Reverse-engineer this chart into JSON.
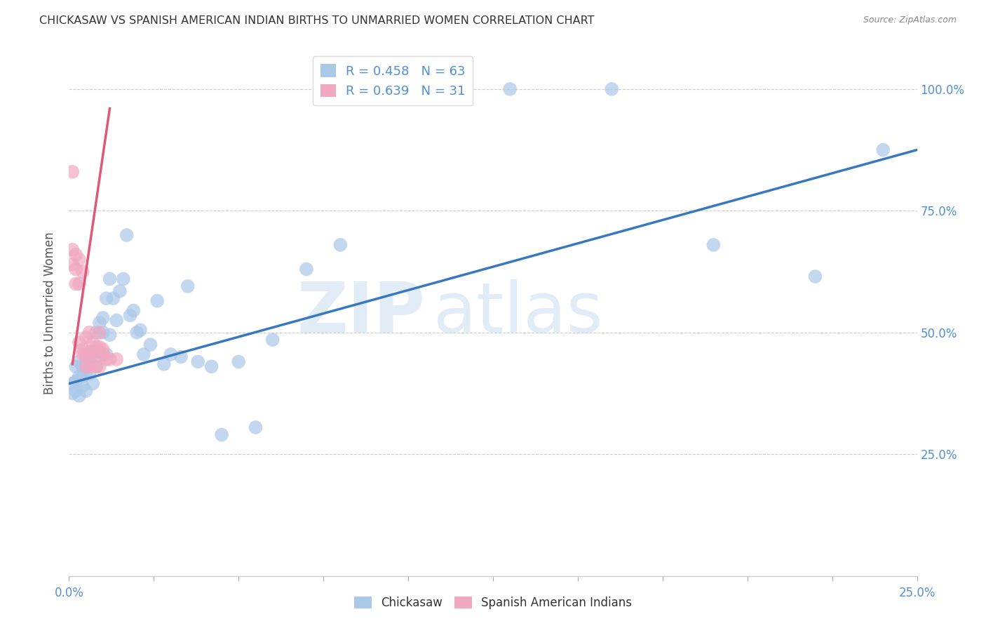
{
  "title": "CHICKASAW VS SPANISH AMERICAN INDIAN BIRTHS TO UNMARRIED WOMEN CORRELATION CHART",
  "source": "Source: ZipAtlas.com",
  "ylabel": "Births to Unmarried Women",
  "xlim": [
    0.0,
    0.25
  ],
  "ylim": [
    0.0,
    1.08
  ],
  "xtick_values": [
    0.0,
    0.025,
    0.05,
    0.075,
    0.1,
    0.125,
    0.15,
    0.175,
    0.2,
    0.225,
    0.25
  ],
  "xtick_labels_show": {
    "0.0": "0.0%",
    "0.25": "25.0%"
  },
  "ytick_values": [
    0.25,
    0.5,
    0.75,
    1.0
  ],
  "ytick_labels": [
    "25.0%",
    "50.0%",
    "75.0%",
    "100.0%"
  ],
  "legend_entry1_r": "R = 0.458",
  "legend_entry1_n": "N = 63",
  "legend_entry2_r": "R = 0.639",
  "legend_entry2_n": "N = 31",
  "watermark_zip": "ZIP",
  "watermark_atlas": "atlas",
  "blue_scatter_x": [
    0.001,
    0.001,
    0.002,
    0.002,
    0.002,
    0.003,
    0.003,
    0.003,
    0.004,
    0.004,
    0.004,
    0.005,
    0.005,
    0.005,
    0.006,
    0.006,
    0.006,
    0.007,
    0.007,
    0.008,
    0.008,
    0.008,
    0.009,
    0.009,
    0.01,
    0.01,
    0.01,
    0.011,
    0.011,
    0.012,
    0.012,
    0.013,
    0.014,
    0.015,
    0.016,
    0.017,
    0.018,
    0.019,
    0.02,
    0.021,
    0.022,
    0.024,
    0.026,
    0.028,
    0.03,
    0.033,
    0.035,
    0.038,
    0.042,
    0.045,
    0.05,
    0.055,
    0.06,
    0.07,
    0.08,
    0.09,
    0.1,
    0.11,
    0.13,
    0.16,
    0.19,
    0.22,
    0.24
  ],
  "blue_scatter_y": [
    0.375,
    0.395,
    0.38,
    0.4,
    0.43,
    0.37,
    0.41,
    0.44,
    0.41,
    0.39,
    0.43,
    0.38,
    0.42,
    0.445,
    0.415,
    0.43,
    0.44,
    0.395,
    0.455,
    0.46,
    0.5,
    0.43,
    0.46,
    0.52,
    0.455,
    0.5,
    0.53,
    0.455,
    0.57,
    0.495,
    0.61,
    0.57,
    0.525,
    0.585,
    0.61,
    0.7,
    0.535,
    0.545,
    0.5,
    0.505,
    0.455,
    0.475,
    0.565,
    0.435,
    0.455,
    0.45,
    0.595,
    0.44,
    0.43,
    0.29,
    0.44,
    0.305,
    0.485,
    0.63,
    0.68,
    1.0,
    1.0,
    1.0,
    1.0,
    1.0,
    0.68,
    0.615,
    0.875
  ],
  "pink_scatter_x": [
    0.001,
    0.001,
    0.001,
    0.002,
    0.002,
    0.002,
    0.003,
    0.003,
    0.003,
    0.004,
    0.004,
    0.004,
    0.005,
    0.005,
    0.005,
    0.006,
    0.006,
    0.006,
    0.007,
    0.007,
    0.007,
    0.008,
    0.008,
    0.009,
    0.009,
    0.009,
    0.01,
    0.01,
    0.011,
    0.012,
    0.014
  ],
  "pink_scatter_y": [
    0.64,
    0.67,
    0.83,
    0.6,
    0.63,
    0.66,
    0.48,
    0.6,
    0.65,
    0.455,
    0.465,
    0.625,
    0.43,
    0.455,
    0.49,
    0.43,
    0.46,
    0.5,
    0.445,
    0.46,
    0.48,
    0.43,
    0.47,
    0.43,
    0.47,
    0.5,
    0.455,
    0.465,
    0.445,
    0.445,
    0.445
  ],
  "blue_line_x": [
    0.0,
    0.25
  ],
  "blue_line_y": [
    0.395,
    0.875
  ],
  "pink_line_x": [
    0.001,
    0.012
  ],
  "pink_line_y": [
    0.435,
    0.96
  ],
  "scatter_color_blue": "#aac8e8",
  "scatter_color_pink": "#f0a8c0",
  "line_color_blue": "#3878c0",
  "line_color_pink": "#e05878",
  "background_color": "#ffffff",
  "grid_color": "#cccccc",
  "title_color": "#333333",
  "axis_label_color": "#555555",
  "tick_color": "#5090d0",
  "source_color": "#888888"
}
